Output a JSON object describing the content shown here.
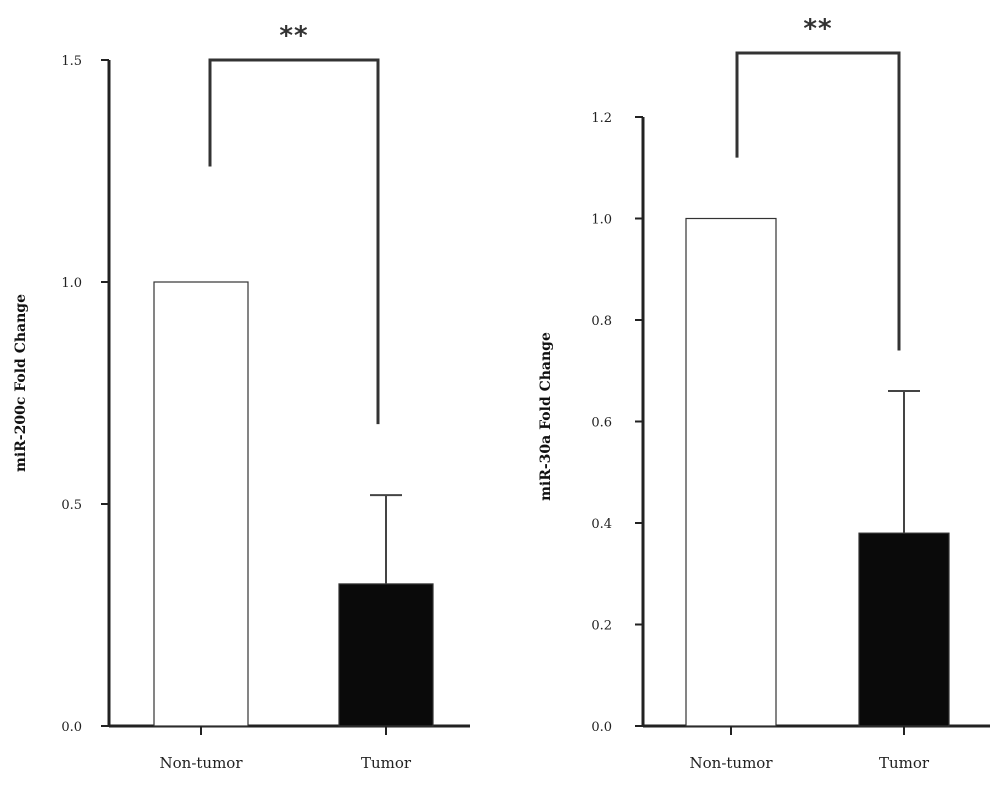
{
  "chart_data": [
    {
      "type": "bar",
      "ylabel": "miR-200c Fold Change",
      "categories": [
        "Non-tumor",
        "Tumor"
      ],
      "values": [
        1.0,
        0.32
      ],
      "error_upper": [
        null,
        0.52
      ],
      "bar_fill": [
        "#ffffff",
        "#0a0a0a"
      ],
      "bar_stroke": "#333333",
      "ylim": [
        0,
        1.5
      ],
      "yticks": [
        "0.0",
        "0.5",
        "1.0",
        "1.5"
      ],
      "ytick_values": [
        0,
        0.5,
        1.0,
        1.5
      ],
      "significance": {
        "label": "**",
        "left_end": 1.26,
        "right_end": 0.68,
        "top": 1.5
      },
      "grid": false
    },
    {
      "type": "bar",
      "ylabel": "miR-30a Fold Change",
      "categories": [
        "Non-tumor",
        "Tumor"
      ],
      "values": [
        1.0,
        0.38
      ],
      "error_upper": [
        null,
        0.66
      ],
      "bar_fill": [
        "#ffffff",
        "#0a0a0a"
      ],
      "bar_stroke": "#333333",
      "ylim": [
        0,
        1.2
      ],
      "yticks": [
        "0.0",
        "0.2",
        "0.4",
        "0.6",
        "0.8",
        "1.0",
        "1.2"
      ],
      "ytick_values": [
        0,
        0.2,
        0.4,
        0.6,
        0.8,
        1.0,
        1.2
      ],
      "significance": {
        "label": "**",
        "left_end": 1.12,
        "right_end": 0.74,
        "top": 1.3
      },
      "grid": false
    }
  ]
}
